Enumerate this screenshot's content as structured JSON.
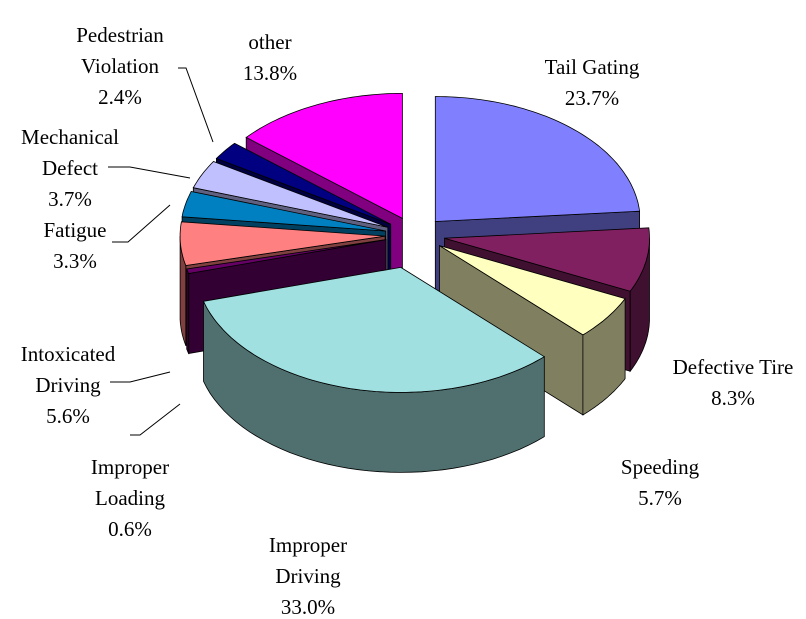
{
  "chart_data": {
    "type": "pie3d",
    "categories": [
      "Tail Gating",
      "Defective Tire",
      "Speeding",
      "Improper Driving",
      "Improper Loading",
      "Intoxicated Driving",
      "Fatigue",
      "Mechanical Defect",
      "Pedestrian Violation",
      "other"
    ],
    "values": [
      23.7,
      8.3,
      5.7,
      33.0,
      0.6,
      5.6,
      3.3,
      3.7,
      2.4,
      13.8
    ],
    "value_labels": [
      "23.7%",
      "8.3%",
      "5.7%",
      "33.0%",
      "0.6%",
      "5.6%",
      "3.3%",
      "3.7%",
      "2.4%",
      "13.8%"
    ],
    "colors": [
      "#8080ff",
      "#802060",
      "#ffffc0",
      "#a0e0e0",
      "#660066",
      "#ff8080",
      "#0080c0",
      "#c0c0ff",
      "#000080",
      "#ff00ff"
    ]
  }
}
